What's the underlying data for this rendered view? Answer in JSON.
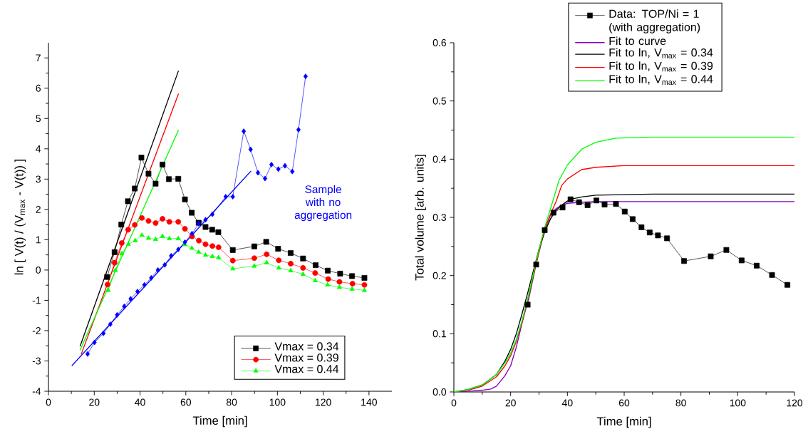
{
  "chart_data": [
    {
      "type": "line",
      "xlabel": "Time  [min]",
      "ylabel": "ln [ V(t) / (V$_{max}$ - V(t)) ]",
      "xlim": [
        0,
        150
      ],
      "ylim": [
        -4,
        7.5
      ],
      "xticks": [
        0,
        20,
        40,
        60,
        80,
        100,
        120,
        140
      ],
      "yticks": [
        -4,
        -3,
        -2,
        -1,
        0,
        1,
        2,
        3,
        4,
        5,
        6,
        7
      ],
      "legend": "bottom right",
      "annotations": [
        "Sample with no aggregation"
      ],
      "series": [
        {
          "name": "Vmax = 0.34",
          "color": "#000000",
          "marker": "square",
          "x": [
            25.6,
            28.9,
            31.8,
            34.7,
            37.7,
            40.6,
            43.7,
            46.8,
            49.8,
            52.6,
            56.7,
            59.6,
            62.6,
            65.6,
            68.6,
            71.5,
            74.2,
            80.5,
            89.9,
            95.1,
            100.3,
            105.8,
            111.2,
            116.7,
            122.0,
            127.4,
            132.6,
            138.0
          ],
          "values": [
            -0.23,
            0.59,
            1.5,
            2.27,
            2.69,
            3.71,
            3.18,
            2.85,
            3.48,
            3.0,
            3.01,
            2.33,
            1.89,
            1.56,
            1.42,
            1.33,
            1.25,
            0.66,
            0.78,
            0.93,
            0.7,
            0.56,
            0.38,
            0.16,
            -0.02,
            -0.12,
            -0.2,
            -0.26
          ]
        },
        {
          "name": "Vmax = 0.39",
          "color": "#ff0000",
          "marker": "circle",
          "x": [
            25.8,
            28.9,
            32.0,
            34.8,
            37.7,
            40.8,
            43.7,
            46.8,
            49.8,
            52.8,
            56.7,
            59.6,
            62.7,
            65.7,
            68.6,
            71.6,
            74.3,
            80.5,
            89.9,
            95.3,
            100.6,
            105.8,
            111.2,
            116.5,
            122.2,
            127.1,
            132.8,
            138.0
          ],
          "values": [
            -0.48,
            0.24,
            0.89,
            1.33,
            1.49,
            1.72,
            1.62,
            1.55,
            1.69,
            1.59,
            1.59,
            1.36,
            1.11,
            0.97,
            0.85,
            0.79,
            0.75,
            0.31,
            0.39,
            0.52,
            0.32,
            0.21,
            0.07,
            -0.1,
            -0.3,
            -0.39,
            -0.45,
            -0.49
          ]
        },
        {
          "name": "Vmax = 0.44",
          "color": "#00ff00",
          "marker": "triangle",
          "x": [
            26.1,
            29.2,
            32.0,
            34.9,
            37.9,
            40.8,
            43.7,
            46.8,
            49.8,
            52.8,
            56.7,
            59.6,
            62.6,
            65.6,
            68.6,
            71.6,
            74.3,
            80.5,
            89.9,
            95.3,
            100.6,
            105.8,
            111.2,
            116.5,
            121.9,
            127.1,
            132.6,
            138.0
          ],
          "values": [
            -0.67,
            -0.01,
            0.54,
            0.85,
            0.97,
            1.15,
            1.05,
            1.01,
            1.11,
            1.04,
            1.04,
            0.84,
            0.72,
            0.59,
            0.49,
            0.45,
            0.41,
            0.04,
            0.13,
            0.24,
            0.07,
            -0.02,
            -0.14,
            -0.35,
            -0.49,
            -0.57,
            -0.63,
            -0.67
          ]
        },
        {
          "color": "#0000ff",
          "marker": "diamond",
          "x": [
            17.1,
            20.1,
            24.0,
            27.0,
            30.0,
            33.1,
            35.9,
            38.9,
            41.9,
            44.9,
            47.8,
            50.8,
            53.6,
            56.7,
            59.6,
            62.7,
            65.6,
            68.6,
            71.6,
            77.4,
            80.5,
            85.3,
            88.3,
            91.5,
            94.6,
            97.4,
            100.4,
            103.3,
            106.5,
            109.2,
            112.3
          ],
          "values": [
            -2.77,
            -2.39,
            -2.09,
            -1.79,
            -1.48,
            -1.2,
            -0.95,
            -0.71,
            -0.49,
            -0.26,
            0.0,
            0.17,
            0.47,
            0.68,
            0.92,
            1.2,
            1.53,
            1.66,
            1.84,
            2.42,
            2.42,
            4.58,
            3.98,
            3.21,
            3.02,
            3.48,
            3.33,
            3.44,
            3.25,
            4.63,
            6.39
          ]
        },
        {
          "color": "#000000",
          "marker": "none",
          "x": [
            13.8,
            56.8
          ],
          "values": [
            -2.52,
            6.58
          ]
        },
        {
          "color": "#ff0000",
          "marker": "none",
          "x": [
            14.3,
            56.8
          ],
          "values": [
            -2.78,
            5.82
          ]
        },
        {
          "color": "#00ff00",
          "marker": "none",
          "x": [
            13.8,
            56.8
          ],
          "values": [
            -2.65,
            4.62
          ]
        },
        {
          "color": "#0000ff",
          "marker": "none",
          "x": [
            10.2,
            88.5
          ],
          "values": [
            -3.16,
            3.27
          ]
        }
      ]
    },
    {
      "type": "line",
      "xlabel": "Time  [min]",
      "ylabel": "Total volume  [arb. units]",
      "xlim": [
        0,
        120
      ],
      "ylim": [
        0,
        0.6
      ],
      "xticks": [
        0,
        20,
        40,
        60,
        80,
        100,
        120
      ],
      "yticks": [
        {
          "value": 0,
          "label": "0.0"
        },
        0.1,
        0.2,
        0.3,
        0.4,
        0.5,
        0.6
      ],
      "legend": "top",
      "series": [
        {
          "name": "Data: TOP/Ni = 1 (with aggregation)",
          "color": "#000000",
          "marker": "square",
          "x": [
            26.0,
            29.0,
            32.0,
            35.1,
            38.3,
            41.1,
            44.1,
            47.1,
            50.2,
            53.1,
            57.1,
            60.2,
            63.0,
            66.1,
            69.0,
            71.9,
            75.1,
            81.1,
            90.5,
            96.0,
            101.4,
            106.7,
            112.1,
            117.5
          ],
          "values": [
            0.15,
            0.219,
            0.278,
            0.308,
            0.317,
            0.331,
            0.326,
            0.321,
            0.329,
            0.322,
            0.323,
            0.31,
            0.297,
            0.283,
            0.274,
            0.269,
            0.264,
            0.225,
            0.233,
            0.244,
            0.226,
            0.217,
            0.201,
            0.184
          ]
        },
        {
          "name": "Fit to curve",
          "color": "#8000c0",
          "marker": "none",
          "x": [
            0,
            5,
            10,
            13,
            15,
            18,
            20,
            22,
            24,
            26,
            28,
            30,
            32,
            34,
            36,
            38,
            40,
            45,
            50,
            120
          ],
          "values": [
            0,
            0.001,
            0.003,
            0.005,
            0.01,
            0.028,
            0.045,
            0.077,
            0.118,
            0.155,
            0.2,
            0.245,
            0.28,
            0.303,
            0.315,
            0.321,
            0.324,
            0.326,
            0.327,
            0.327
          ]
        },
        {
          "name": "Fit to ln, V$_{max}$ = 0.34",
          "color": "#000000",
          "marker": "none",
          "x": [
            0,
            5,
            10,
            15,
            18,
            20,
            22,
            24,
            26,
            28,
            30,
            32,
            34,
            36,
            38,
            40,
            42,
            45,
            50,
            60,
            70,
            120
          ],
          "values": [
            0,
            0.004,
            0.012,
            0.03,
            0.053,
            0.073,
            0.1,
            0.134,
            0.17,
            0.208,
            0.245,
            0.275,
            0.297,
            0.312,
            0.321,
            0.328,
            0.332,
            0.335,
            0.338,
            0.339,
            0.34,
            0.34
          ]
        },
        {
          "name": "Fit to ln, V$_{max}$ = 0.39",
          "color": "#ff0000",
          "marker": "none",
          "x": [
            0,
            5,
            10,
            15,
            18,
            20,
            22,
            24,
            26,
            28,
            30,
            32,
            34,
            36,
            38,
            40,
            45,
            50,
            60,
            120
          ],
          "values": [
            0,
            0.003,
            0.01,
            0.026,
            0.045,
            0.062,
            0.087,
            0.12,
            0.158,
            0.2,
            0.243,
            0.28,
            0.305,
            0.327,
            0.355,
            0.366,
            0.382,
            0.386,
            0.389,
            0.389
          ]
        },
        {
          "name": "Fit to ln, V$_{max}$ = 0.44",
          "color": "#00ff00",
          "marker": "none",
          "x": [
            0,
            5,
            10,
            15,
            18,
            20,
            22,
            24,
            26,
            28,
            30,
            32,
            35,
            37,
            40,
            45,
            50,
            57,
            70,
            120
          ],
          "values": [
            0,
            0.004,
            0.012,
            0.03,
            0.05,
            0.066,
            0.09,
            0.122,
            0.16,
            0.203,
            0.245,
            0.283,
            0.33,
            0.363,
            0.39,
            0.417,
            0.429,
            0.436,
            0.438,
            0.438
          ]
        }
      ]
    }
  ]
}
